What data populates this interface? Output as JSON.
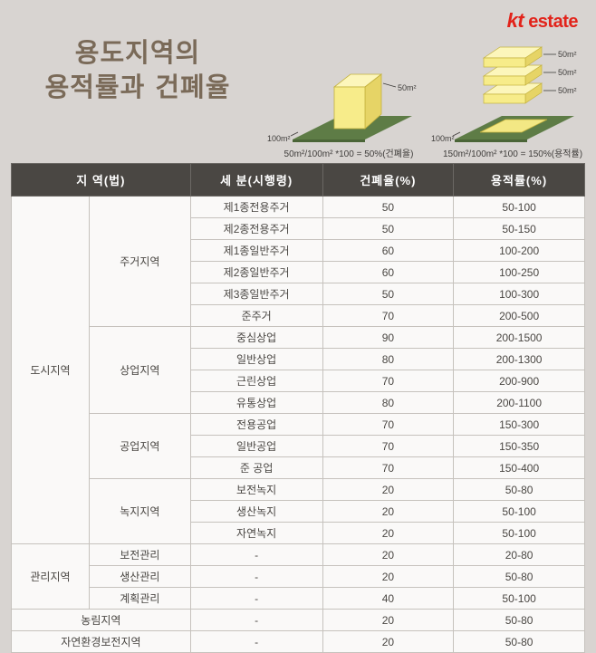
{
  "logo": {
    "kt": "kt",
    "estate": "estate"
  },
  "title": {
    "line1": "용도지역의",
    "line2": "용적률과 건폐율"
  },
  "diagrams": {
    "left": {
      "building_label": "50m²",
      "ground_label": "100m²",
      "formula": "50m²/100m² *100 = 50%(건폐율)"
    },
    "right": {
      "floor_labels": [
        "50m²",
        "50m²",
        "50m²"
      ],
      "ground_label": "100m²",
      "formula": "150m²/100m² *100 = 150%(용적률)"
    }
  },
  "colors": {
    "accent_red": "#e2231a",
    "title_brown": "#7a6a58",
    "header_dark": "#4a4743",
    "ground_green": "#5e7c46",
    "box_yellow": "#f7ec8a"
  },
  "table": {
    "headers": [
      "지 역(법)",
      "세 분(시행령)",
      "건폐율(%)",
      "용적률(%)"
    ],
    "rows": [
      [
        {
          "t": "도시지역",
          "rs": 16,
          "n": "zone-group-cell"
        },
        {
          "t": "주거지역",
          "rs": 6,
          "n": "subzone-group-cell"
        },
        {
          "t": "제1종전용주거"
        },
        {
          "t": "50"
        },
        {
          "t": "50-100"
        }
      ],
      [
        {
          "t": "제2종전용주거"
        },
        {
          "t": "50"
        },
        {
          "t": "50-150"
        }
      ],
      [
        {
          "t": "제1종일반주거"
        },
        {
          "t": "60"
        },
        {
          "t": "100-200"
        }
      ],
      [
        {
          "t": "제2종일반주거"
        },
        {
          "t": "60"
        },
        {
          "t": "100-250"
        }
      ],
      [
        {
          "t": "제3종일반주거"
        },
        {
          "t": "50"
        },
        {
          "t": "100-300"
        }
      ],
      [
        {
          "t": "준주거"
        },
        {
          "t": "70"
        },
        {
          "t": "200-500"
        }
      ],
      [
        {
          "t": "상업지역",
          "rs": 4,
          "n": "subzone-group-cell"
        },
        {
          "t": "중심상업"
        },
        {
          "t": "90"
        },
        {
          "t": "200-1500"
        }
      ],
      [
        {
          "t": "일반상업"
        },
        {
          "t": "80"
        },
        {
          "t": "200-1300"
        }
      ],
      [
        {
          "t": "근린상업"
        },
        {
          "t": "70"
        },
        {
          "t": "200-900"
        }
      ],
      [
        {
          "t": "유통상업"
        },
        {
          "t": "80"
        },
        {
          "t": "200-1100"
        }
      ],
      [
        {
          "t": "공업지역",
          "rs": 3,
          "n": "subzone-group-cell"
        },
        {
          "t": "전용공업"
        },
        {
          "t": "70"
        },
        {
          "t": "150-300"
        }
      ],
      [
        {
          "t": "일반공업"
        },
        {
          "t": "70"
        },
        {
          "t": "150-350"
        }
      ],
      [
        {
          "t": "준 공업"
        },
        {
          "t": "70"
        },
        {
          "t": "150-400"
        }
      ],
      [
        {
          "t": "녹지지역",
          "rs": 3,
          "n": "subzone-group-cell"
        },
        {
          "t": "보전녹지"
        },
        {
          "t": "20"
        },
        {
          "t": "50-80"
        }
      ],
      [
        {
          "t": "생산녹지"
        },
        {
          "t": "20"
        },
        {
          "t": "50-100"
        }
      ],
      [
        {
          "t": "자연녹지"
        },
        {
          "t": "20"
        },
        {
          "t": "50-100"
        }
      ],
      [
        {
          "t": "관리지역",
          "rs": 3,
          "n": "zone-group-cell"
        },
        {
          "t": "보전관리",
          "n": "subzone-group-cell"
        },
        {
          "t": "-"
        },
        {
          "t": "20"
        },
        {
          "t": "20-80"
        }
      ],
      [
        {
          "t": "생산관리",
          "n": "subzone-group-cell"
        },
        {
          "t": "-"
        },
        {
          "t": "20"
        },
        {
          "t": "50-80"
        }
      ],
      [
        {
          "t": "계획관리",
          "n": "subzone-group-cell"
        },
        {
          "t": "-"
        },
        {
          "t": "40"
        },
        {
          "t": "50-100"
        }
      ],
      [
        {
          "t": "농림지역",
          "cs": 2,
          "n": "zone-group-cell"
        },
        {
          "t": "-"
        },
        {
          "t": "20"
        },
        {
          "t": "50-80"
        }
      ],
      [
        {
          "t": "자연환경보전지역",
          "cs": 2,
          "n": "zone-group-cell"
        },
        {
          "t": "-"
        },
        {
          "t": "20"
        },
        {
          "t": "50-80"
        }
      ]
    ]
  }
}
